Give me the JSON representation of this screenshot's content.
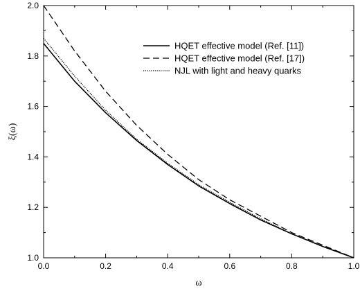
{
  "chart_data": {
    "type": "line",
    "title": "",
    "xlabel": "ω",
    "ylabel": "ξ(ω)",
    "xlim": [
      0.0,
      1.0
    ],
    "ylim": [
      1.0,
      2.0
    ],
    "x_ticks": [
      "0.0",
      "0.2",
      "0.4",
      "0.6",
      "0.8",
      "1.0"
    ],
    "y_ticks": [
      "1.0",
      "1.2",
      "1.4",
      "1.6",
      "1.8",
      "2.0"
    ],
    "grid": false,
    "legend_position": "top-right",
    "x": [
      0.0,
      0.1,
      0.2,
      0.3,
      0.4,
      0.5,
      0.6,
      0.7,
      0.8,
      0.9,
      1.0
    ],
    "series": [
      {
        "name": "HQET effective model (Ref. [11])",
        "style": "solid",
        "values": [
          1.85,
          1.7,
          1.575,
          1.465,
          1.37,
          1.285,
          1.215,
          1.15,
          1.095,
          1.045,
          1.0
        ]
      },
      {
        "name": "HQET effective model (Ref. [17])",
        "style": "dashed",
        "values": [
          2.0,
          1.82,
          1.66,
          1.525,
          1.41,
          1.31,
          1.23,
          1.165,
          1.1,
          1.05,
          1.0
        ]
      },
      {
        "name": "NJL with light and heavy quarks",
        "style": "dotted",
        "values": [
          1.87,
          1.72,
          1.585,
          1.47,
          1.375,
          1.29,
          1.22,
          1.155,
          1.095,
          1.045,
          1.0
        ]
      }
    ]
  }
}
